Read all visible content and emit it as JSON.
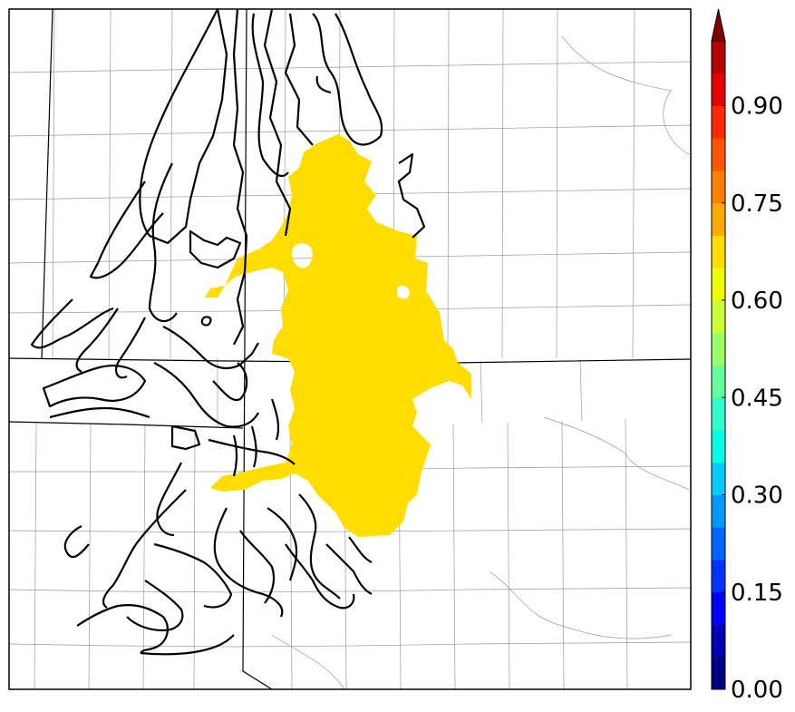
{
  "map": {
    "fill_color": "#ffdd00",
    "contour_color": "#000000",
    "county_line_color": "#9a9a9a",
    "state_line_color": "#000000"
  },
  "colorbar": {
    "min": 0.0,
    "max": 1.0,
    "step": 0.05,
    "extend": "max",
    "tick_labels": [
      "0.00",
      "0.15",
      "0.30",
      "0.45",
      "0.60",
      "0.75",
      "0.90"
    ],
    "tick_values": [
      0.0,
      0.15,
      0.3,
      0.45,
      0.6,
      0.75,
      0.9
    ],
    "colors": [
      "#00007f",
      "#0000b2",
      "#0000ff",
      "#0033ff",
      "#0066ff",
      "#0099ff",
      "#00ccff",
      "#00ffe6",
      "#33ffcc",
      "#66ff99",
      "#99ff66",
      "#ccff33",
      "#eeff00",
      "#ffdd00",
      "#ffaa00",
      "#ff8000",
      "#ff5500",
      "#ff2a00",
      "#e60000",
      "#b20000"
    ],
    "extend_color": "#7f0000"
  }
}
